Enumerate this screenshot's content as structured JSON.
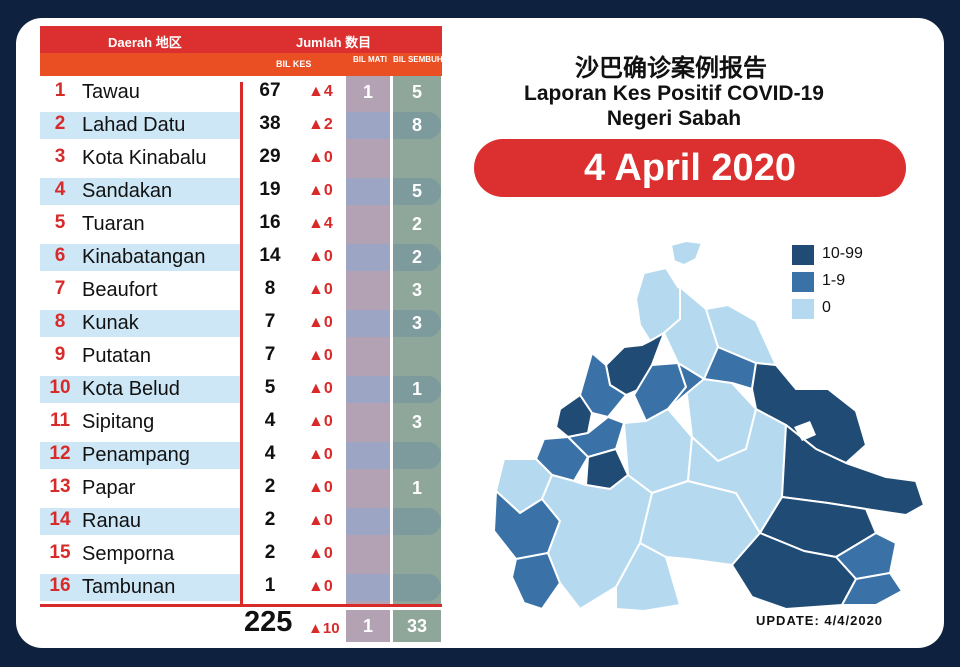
{
  "table": {
    "header_daerah": "Daerah 地区",
    "header_jumlah": "Jumlah 数目",
    "header_bil_kes": "BIL KES",
    "header_bil_mati": "BIL MATI",
    "header_bil_sembuh": "BIL SEMBUH",
    "rows": [
      {
        "no": "1",
        "name": "Tawau",
        "kes": "67",
        "inc": "▲4",
        "mati": "1",
        "sembuh": "5"
      },
      {
        "no": "2",
        "name": "Lahad Datu",
        "kes": "38",
        "inc": "▲2",
        "mati": "",
        "sembuh": "8"
      },
      {
        "no": "3",
        "name": "Kota Kinabalu",
        "kes": "29",
        "inc": "▲0",
        "mati": "",
        "sembuh": ""
      },
      {
        "no": "4",
        "name": "Sandakan",
        "kes": "19",
        "inc": "▲0",
        "mati": "",
        "sembuh": "5"
      },
      {
        "no": "5",
        "name": "Tuaran",
        "kes": "16",
        "inc": "▲4",
        "mati": "",
        "sembuh": "2"
      },
      {
        "no": "6",
        "name": "Kinabatangan",
        "kes": "14",
        "inc": "▲0",
        "mati": "",
        "sembuh": "2"
      },
      {
        "no": "7",
        "name": "Beaufort",
        "kes": "8",
        "inc": "▲0",
        "mati": "",
        "sembuh": "3"
      },
      {
        "no": "8",
        "name": "Kunak",
        "kes": "7",
        "inc": "▲0",
        "mati": "",
        "sembuh": "3"
      },
      {
        "no": "9",
        "name": "Putatan",
        "kes": "7",
        "inc": "▲0",
        "mati": "",
        "sembuh": ""
      },
      {
        "no": "10",
        "name": "Kota Belud",
        "kes": "5",
        "inc": "▲0",
        "mati": "",
        "sembuh": "1"
      },
      {
        "no": "11",
        "name": "Sipitang",
        "kes": "4",
        "inc": "▲0",
        "mati": "",
        "sembuh": "3"
      },
      {
        "no": "12",
        "name": "Penampang",
        "kes": "4",
        "inc": "▲0",
        "mati": "",
        "sembuh": ""
      },
      {
        "no": "13",
        "name": "Papar",
        "kes": "2",
        "inc": "▲0",
        "mati": "",
        "sembuh": "1"
      },
      {
        "no": "14",
        "name": "Ranau",
        "kes": "2",
        "inc": "▲0",
        "mati": "",
        "sembuh": ""
      },
      {
        "no": "15",
        "name": "Semporna",
        "kes": "2",
        "inc": "▲0",
        "mati": "",
        "sembuh": ""
      },
      {
        "no": "16",
        "name": "Tambunan",
        "kes": "1",
        "inc": "▲0",
        "mati": "",
        "sembuh": ""
      }
    ],
    "total_kes": "225",
    "total_inc": "▲10",
    "total_mati": "1",
    "total_sembuh": "33"
  },
  "title_zh": "沙巴确诊案例报告",
  "title_en_line1": "Laporan Kes Positif COVID-19",
  "title_en_line2": "Negeri Sabah",
  "date": "4 April 2020",
  "legend": [
    {
      "label": "10-99",
      "color": "#1f4b75"
    },
    {
      "label": "1-9",
      "color": "#3a72a8"
    },
    {
      "label": "0",
      "color": "#b5daf0"
    }
  ],
  "update": "UPDATE: 4/4/2020",
  "colors": {
    "accent_red": "#dc2f2f",
    "header_orange": "#ea4f24",
    "background": "#0e2240",
    "map_dark": "#1f4b75",
    "map_mid": "#3a72a8",
    "map_light": "#b5daf0"
  }
}
